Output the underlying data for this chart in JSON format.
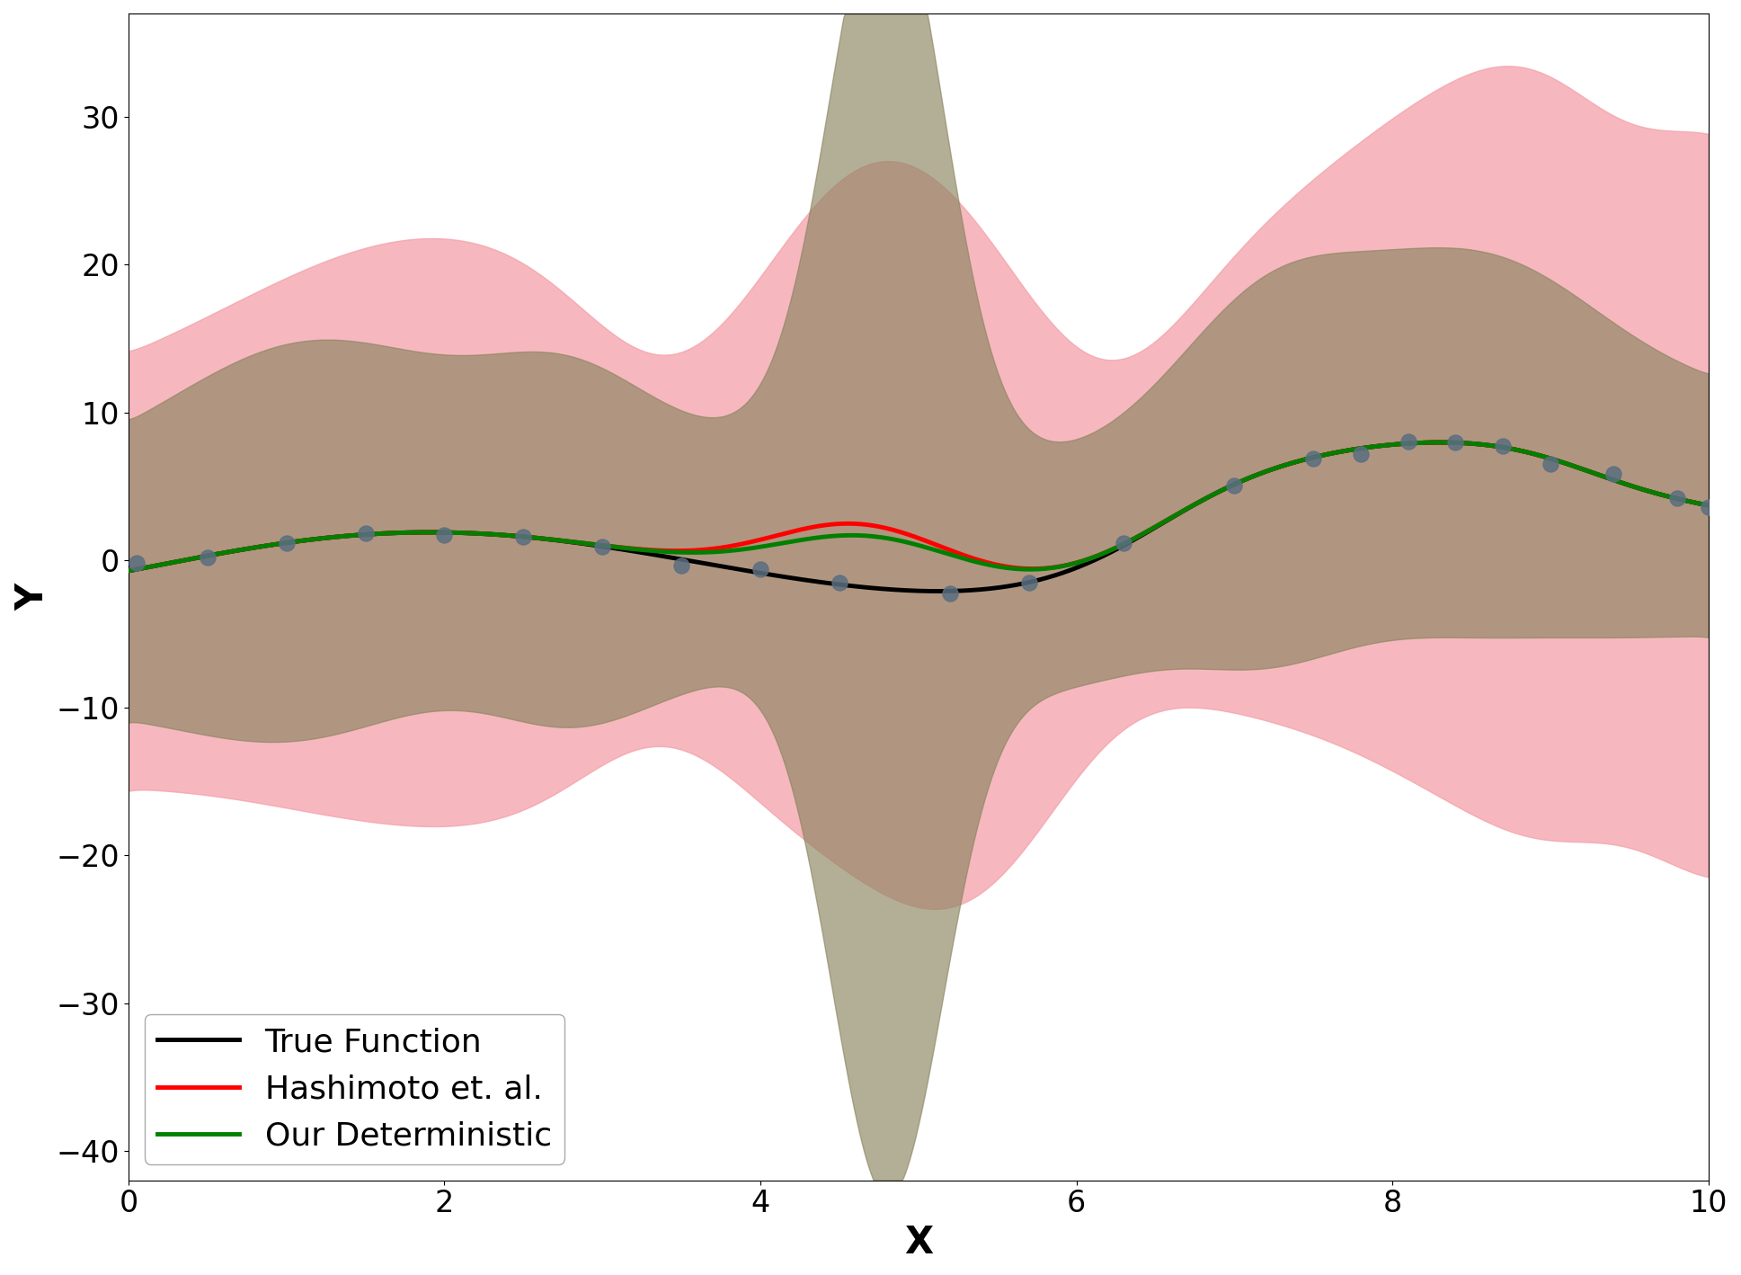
{
  "title": "",
  "xlabel": "X",
  "ylabel": "Y",
  "xlim": [
    0,
    10
  ],
  "ylim": [
    -42,
    37
  ],
  "xticks": [
    0,
    2,
    4,
    6,
    8,
    10
  ],
  "yticks": [
    -40,
    -30,
    -20,
    -10,
    0,
    10,
    20,
    30
  ],
  "true_func_color": "black",
  "hashimoto_color": "red",
  "our_color": "green",
  "band_pink_color": "#f4a0a8",
  "band_olive_color": "#8b8460",
  "data_point_color": "#5a6e80",
  "legend_labels": [
    "True Function",
    "Hashimoto et. al.",
    "Our Deterministic"
  ],
  "figsize": [
    19.37,
    14.18
  ],
  "dpi": 100,
  "linewidth": 3.5
}
